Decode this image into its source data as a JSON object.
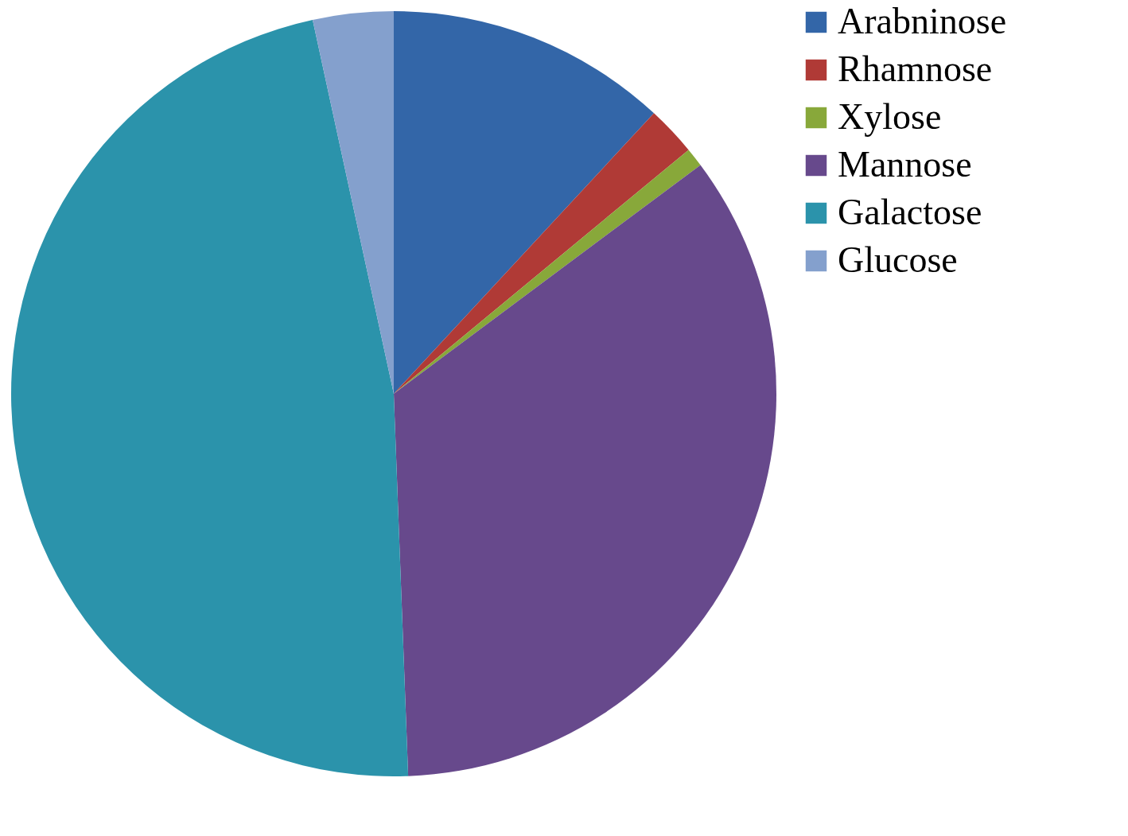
{
  "chart_data": {
    "type": "pie",
    "categories": [
      "Arabninose",
      "Rhamnose",
      "Xylose",
      "Mannose",
      "Galactose",
      "Glucose"
    ],
    "values": [
      11.9,
      2.1,
      0.8,
      34.6,
      47.2,
      3.4
    ],
    "colors": [
      "#3366a8",
      "#b03a36",
      "#88a83a",
      "#67498c",
      "#2b93ab",
      "#84a0cd"
    ],
    "legend": "right"
  }
}
